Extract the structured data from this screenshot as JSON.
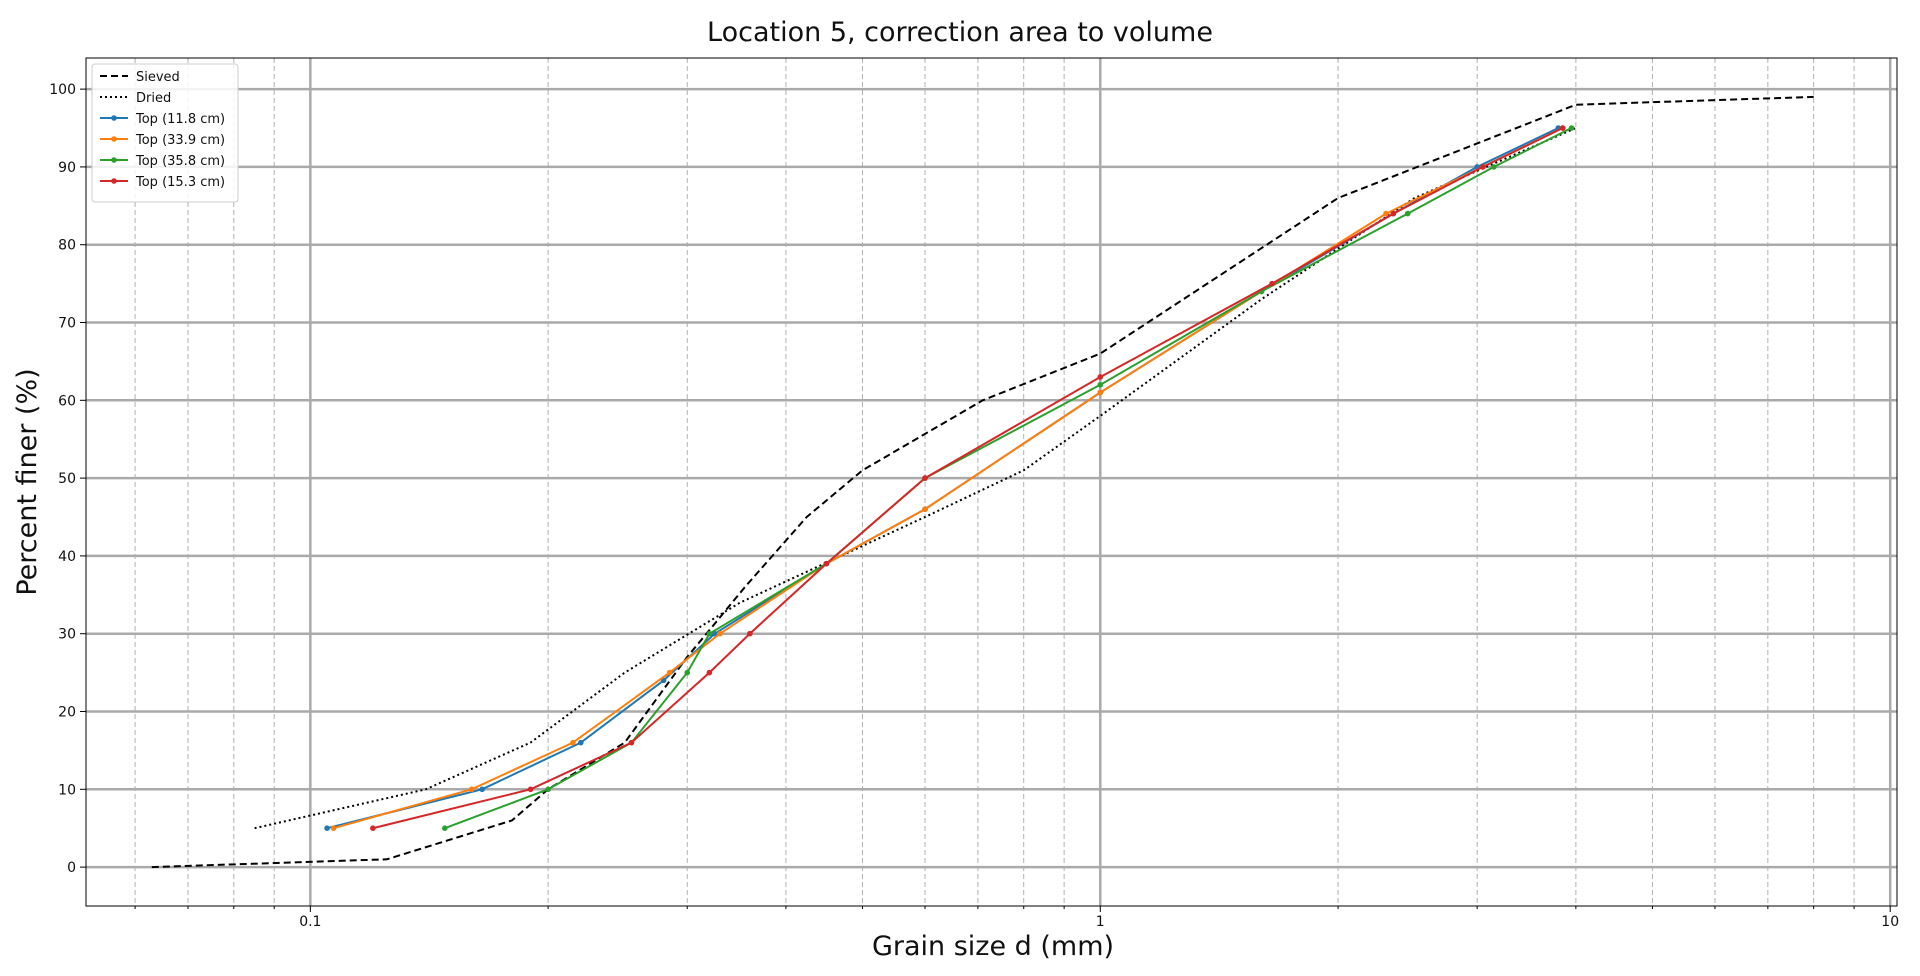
{
  "chart_data": {
    "type": "line",
    "title": "Location 5, correction area to volume",
    "xlabel": "Grain size d (mm)",
    "ylabel": "Percent finer (%)",
    "x_scale": "log",
    "xlim": [
      0.052,
      10.2
    ],
    "ylim": [
      -5,
      104
    ],
    "x_ticks": [
      0.1,
      1,
      10
    ],
    "x_tick_labels": [
      "0.1",
      "1",
      "10"
    ],
    "y_ticks": [
      0,
      10,
      20,
      30,
      40,
      50,
      60,
      70,
      80,
      90,
      100
    ],
    "y_tick_labels": [
      "0",
      "10",
      "20",
      "30",
      "40",
      "50",
      "60",
      "70",
      "80",
      "90",
      "100"
    ],
    "grid": true,
    "legend_position": "top-left",
    "series": [
      {
        "name": "Sieved",
        "color": "#000000",
        "style": "dashed",
        "marker": false,
        "points": [
          [
            0.063,
            0
          ],
          [
            0.125,
            1
          ],
          [
            0.18,
            6
          ],
          [
            0.2,
            10
          ],
          [
            0.25,
            16
          ],
          [
            0.3,
            27
          ],
          [
            0.355,
            36
          ],
          [
            0.425,
            45
          ],
          [
            0.5,
            51
          ],
          [
            0.71,
            60
          ],
          [
            1.0,
            66
          ],
          [
            2.0,
            86
          ],
          [
            4.0,
            98
          ],
          [
            8.0,
            99
          ]
        ]
      },
      {
        "name": "Dried",
        "color": "#000000",
        "style": "dotted",
        "marker": false,
        "points": [
          [
            0.085,
            5
          ],
          [
            0.14,
            10
          ],
          [
            0.19,
            16
          ],
          [
            0.25,
            25
          ],
          [
            0.35,
            34
          ],
          [
            0.6,
            45
          ],
          [
            0.8,
            51
          ],
          [
            1.0,
            58
          ],
          [
            1.6,
            73
          ],
          [
            2.5,
            86
          ],
          [
            4.0,
            95
          ]
        ]
      },
      {
        "name": "Top (11.8 cm)",
        "color": "#1f77b4",
        "style": "solid",
        "marker": true,
        "points": [
          [
            0.105,
            5
          ],
          [
            0.165,
            10
          ],
          [
            0.22,
            16
          ],
          [
            0.28,
            24
          ],
          [
            0.325,
            30
          ],
          [
            0.45,
            39
          ],
          [
            0.6,
            46
          ],
          [
            1.0,
            61
          ],
          [
            1.6,
            74
          ],
          [
            2.35,
            84
          ],
          [
            3.0,
            90
          ],
          [
            3.8,
            95
          ]
        ]
      },
      {
        "name": "Top (33.9 cm)",
        "color": "#ff7f0e",
        "style": "solid",
        "marker": true,
        "points": [
          [
            0.107,
            5
          ],
          [
            0.16,
            10
          ],
          [
            0.215,
            16
          ],
          [
            0.285,
            25
          ],
          [
            0.33,
            30
          ],
          [
            0.45,
            39
          ],
          [
            0.6,
            46
          ],
          [
            1.0,
            61
          ],
          [
            1.6,
            74
          ],
          [
            2.3,
            84
          ],
          [
            3.05,
            90
          ],
          [
            3.85,
            95
          ]
        ]
      },
      {
        "name": "Top (35.8 cm)",
        "color": "#2ca02c",
        "style": "solid",
        "marker": true,
        "points": [
          [
            0.148,
            5
          ],
          [
            0.2,
            10
          ],
          [
            0.255,
            16
          ],
          [
            0.3,
            25
          ],
          [
            0.32,
            30
          ],
          [
            0.45,
            39
          ],
          [
            0.6,
            50
          ],
          [
            1.0,
            62
          ],
          [
            1.6,
            74
          ],
          [
            2.45,
            84
          ],
          [
            3.15,
            90
          ],
          [
            3.95,
            95
          ]
        ]
      },
      {
        "name": "Top (15.3 cm)",
        "color": "#d62728",
        "style": "solid",
        "marker": true,
        "points": [
          [
            0.12,
            5
          ],
          [
            0.19,
            10
          ],
          [
            0.255,
            16
          ],
          [
            0.32,
            25
          ],
          [
            0.36,
            30
          ],
          [
            0.45,
            39
          ],
          [
            0.6,
            50
          ],
          [
            1.0,
            63
          ],
          [
            1.65,
            75
          ],
          [
            2.35,
            84
          ],
          [
            3.05,
            90
          ],
          [
            3.85,
            95
          ]
        ]
      }
    ]
  }
}
